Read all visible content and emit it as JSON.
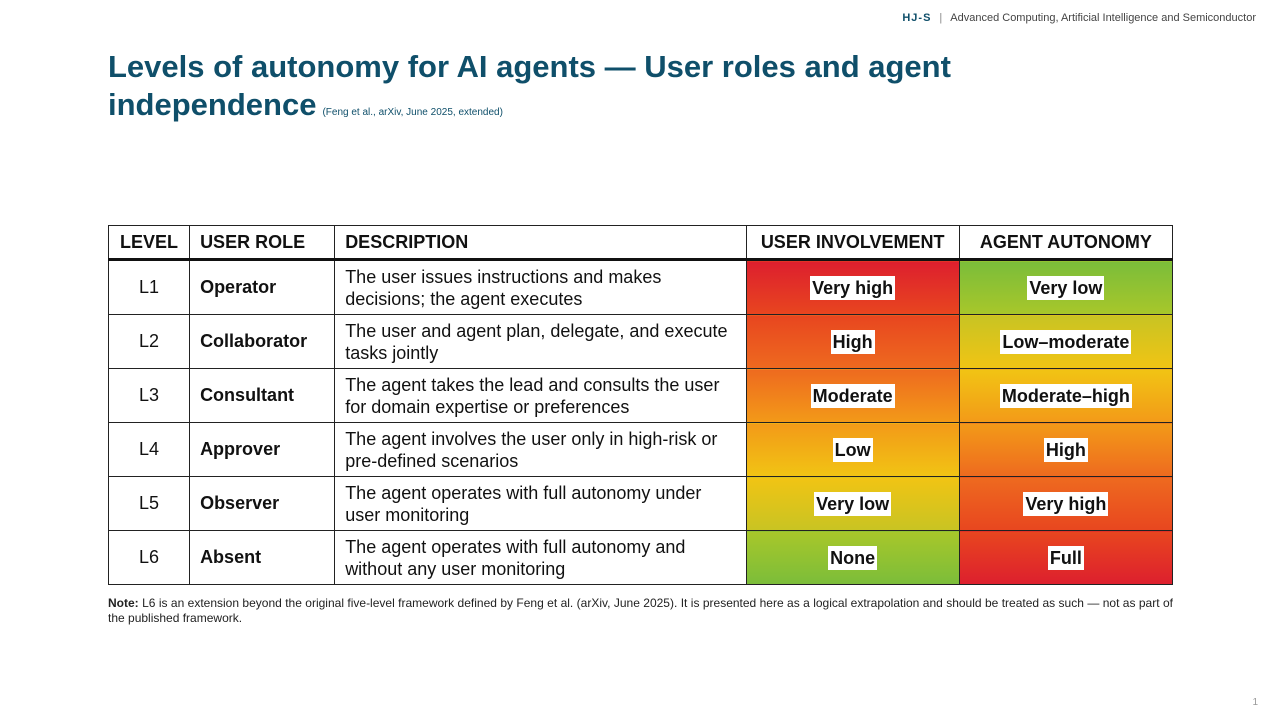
{
  "header": {
    "logo": "HJ-S",
    "org": "Advanced Computing, Artificial Intelligence and Semiconductor"
  },
  "title": {
    "main": "Levels of autonomy for AI agents — User roles and agent independence",
    "citation": "(Feng et al., arXiv, June 2025, extended)"
  },
  "table": {
    "headers": [
      "LEVEL",
      "USER ROLE",
      "DESCRIPTION",
      "USER INVOLVEMENT",
      "AGENT AUTONOMY"
    ],
    "rows": [
      {
        "level": "L1",
        "role": "Operator",
        "description": "The user issues instructions and makes decisions; the agent executes",
        "involvement": "Very high",
        "autonomy": "Very low"
      },
      {
        "level": "L2",
        "role": "Collaborator",
        "description": "The user and agent plan, delegate, and execute tasks jointly",
        "involvement": "High",
        "autonomy": "Low–moderate"
      },
      {
        "level": "L3",
        "role": "Consultant",
        "description": "The agent takes the lead and consults the user for domain expertise or preferences",
        "involvement": "Moderate",
        "autonomy": "Moderate–high"
      },
      {
        "level": "L4",
        "role": "Approver",
        "description": "The agent involves the user only in high-risk or pre-defined scenarios",
        "involvement": "Low",
        "autonomy": "High"
      },
      {
        "level": "L5",
        "role": "Observer",
        "description": "The agent operates with full autonomy under user monitoring",
        "involvement": "Very low",
        "autonomy": "Very high"
      },
      {
        "level": "L6",
        "role": "Absent",
        "description": "The agent operates with full autonomy and without any user monitoring",
        "involvement": "None",
        "autonomy": "Full"
      }
    ]
  },
  "note": {
    "label": "Note:",
    "text": "L6 is an extension beyond the original five-level framework defined by Feng et al. (arXiv, June 2025). It is presented here as a logical extrapolation and should be treated as such — not as part of the published framework."
  },
  "page_number": "1",
  "colors": {
    "title": "#0f4f6a",
    "red": "#dd1f2e",
    "orange": "#ee6a1f",
    "yellow": "#f1c414",
    "green": "#7bbd3a"
  }
}
